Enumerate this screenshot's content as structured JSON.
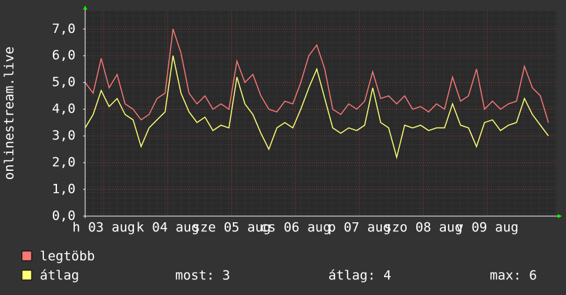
{
  "chart_data": {
    "type": "line",
    "y_label": "onlinestream.live",
    "x": [
      0,
      3,
      6,
      9,
      12,
      15,
      18,
      21,
      24,
      27,
      30,
      33,
      36,
      39,
      42,
      45,
      48,
      51,
      54,
      57,
      60,
      63,
      66,
      69,
      72,
      75,
      78,
      81,
      84,
      87,
      90,
      93,
      96,
      99,
      102,
      105,
      108,
      111,
      114,
      117,
      120,
      123,
      126,
      129,
      132,
      135,
      138,
      141,
      144,
      147,
      150,
      153,
      156,
      159,
      162,
      165,
      168,
      171,
      174
    ],
    "xlim": [
      0,
      177
    ],
    "xticks": [
      {
        "value": 7,
        "label": "h 03 aug"
      },
      {
        "value": 31,
        "label": "k 04 aug"
      },
      {
        "value": 55,
        "label": "sze 05 aug"
      },
      {
        "value": 79,
        "label": "cs 06 aug"
      },
      {
        "value": 103,
        "label": "p 07 aug"
      },
      {
        "value": 127,
        "label": "szo 08 aug"
      },
      {
        "value": 151,
        "label": "v 09 aug"
      }
    ],
    "ylim": [
      0,
      7.7
    ],
    "yticks": [
      {
        "value": 0,
        "label": "0,0"
      },
      {
        "value": 1,
        "label": "1,0"
      },
      {
        "value": 2,
        "label": "2,0"
      },
      {
        "value": 3,
        "label": "3,0"
      },
      {
        "value": 4,
        "label": "4,0"
      },
      {
        "value": 5,
        "label": "5,0"
      },
      {
        "value": 6,
        "label": "6,0"
      },
      {
        "value": 7,
        "label": "7,0"
      }
    ],
    "grid": true,
    "series": [
      {
        "name": "legtöbb",
        "color": "#f87878",
        "values": [
          5.0,
          4.6,
          5.9,
          4.8,
          5.3,
          4.2,
          4.0,
          3.6,
          3.8,
          4.4,
          4.6,
          7.0,
          6.1,
          4.6,
          4.2,
          4.5,
          4.0,
          4.2,
          4.0,
          5.8,
          5.0,
          5.3,
          4.5,
          4.0,
          3.9,
          4.3,
          4.2,
          5.0,
          6.0,
          6.4,
          5.5,
          4.0,
          3.8,
          4.2,
          4.0,
          4.3,
          5.4,
          4.4,
          4.5,
          4.2,
          4.5,
          4.0,
          4.1,
          3.9,
          4.2,
          4.0,
          5.2,
          4.3,
          4.5,
          5.5,
          4.0,
          4.3,
          4.0,
          4.2,
          4.3,
          5.6,
          4.8,
          4.5,
          3.5
        ]
      },
      {
        "name": "átlag",
        "color": "#ffff78",
        "values": [
          3.3,
          3.8,
          4.7,
          4.1,
          4.4,
          3.8,
          3.6,
          2.6,
          3.3,
          3.6,
          3.9,
          6.0,
          4.6,
          3.9,
          3.5,
          3.7,
          3.2,
          3.4,
          3.3,
          5.2,
          4.2,
          3.8,
          3.1,
          2.5,
          3.3,
          3.5,
          3.3,
          4.0,
          4.8,
          5.5,
          4.4,
          3.3,
          3.1,
          3.3,
          3.2,
          3.4,
          4.8,
          3.5,
          3.3,
          2.2,
          3.4,
          3.3,
          3.4,
          3.2,
          3.3,
          3.3,
          4.2,
          3.4,
          3.3,
          2.6,
          3.5,
          3.6,
          3.2,
          3.4,
          3.5,
          4.4,
          3.8,
          3.4,
          3.0
        ]
      }
    ],
    "stats": [
      "most: 3",
      "átlag: 4",
      "max: 6"
    ]
  }
}
